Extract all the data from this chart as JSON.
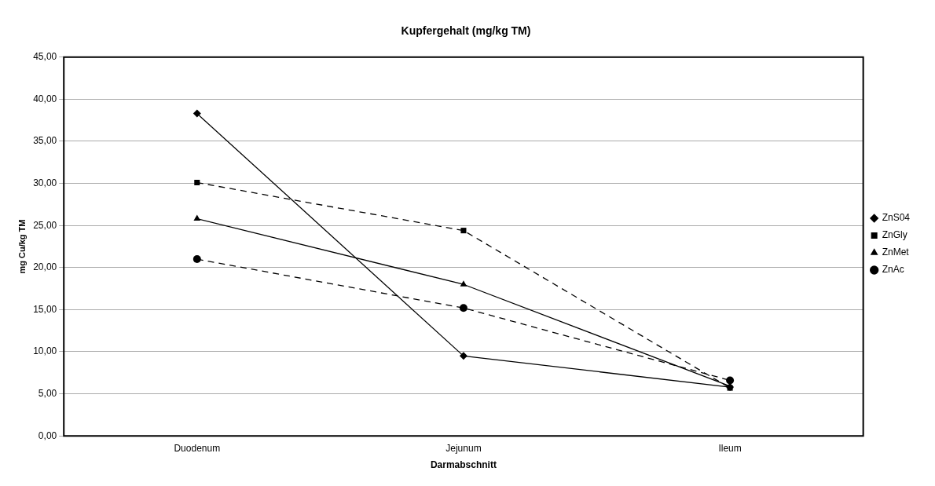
{
  "chart_data": {
    "type": "line",
    "title": "Kupfergehalt (mg/kg TM)",
    "xlabel": "Darmabschnitt",
    "ylabel": "mg Cu/kg TM",
    "categories": [
      "Duodenum",
      "Jejunum",
      "Ileum"
    ],
    "series": [
      {
        "name": "ZnS04",
        "color": "#000000",
        "values": [
          38.3,
          9.5,
          5.8
        ],
        "marker": "diamond",
        "line_style": "solid"
      },
      {
        "name": "ZnGly",
        "color": "#000000",
        "values": [
          30.1,
          24.4,
          5.7
        ],
        "marker": "square",
        "line_style": "dashed"
      },
      {
        "name": "ZnMet",
        "color": "#000000",
        "values": [
          25.8,
          18.0,
          5.9
        ],
        "marker": "triangle",
        "line_style": "solid"
      },
      {
        "name": "ZnAc",
        "color": "#000000",
        "values": [
          21.0,
          15.2,
          6.6
        ],
        "marker": "circle",
        "line_style": "dashed"
      }
    ],
    "ylim": [
      0,
      45
    ],
    "yticks": [
      {
        "value": 0,
        "label": "0,00"
      },
      {
        "value": 5,
        "label": "5,00"
      },
      {
        "value": 10,
        "label": "10,00"
      },
      {
        "value": 15,
        "label": "15,00"
      },
      {
        "value": 20,
        "label": "20,00"
      },
      {
        "value": 25,
        "label": "25,00"
      },
      {
        "value": 30,
        "label": "30,00"
      },
      {
        "value": 35,
        "label": "35,00"
      },
      {
        "value": 40,
        "label": "40,00"
      },
      {
        "value": 45,
        "label": "45,00"
      }
    ],
    "grid": "y",
    "legend": "right"
  }
}
